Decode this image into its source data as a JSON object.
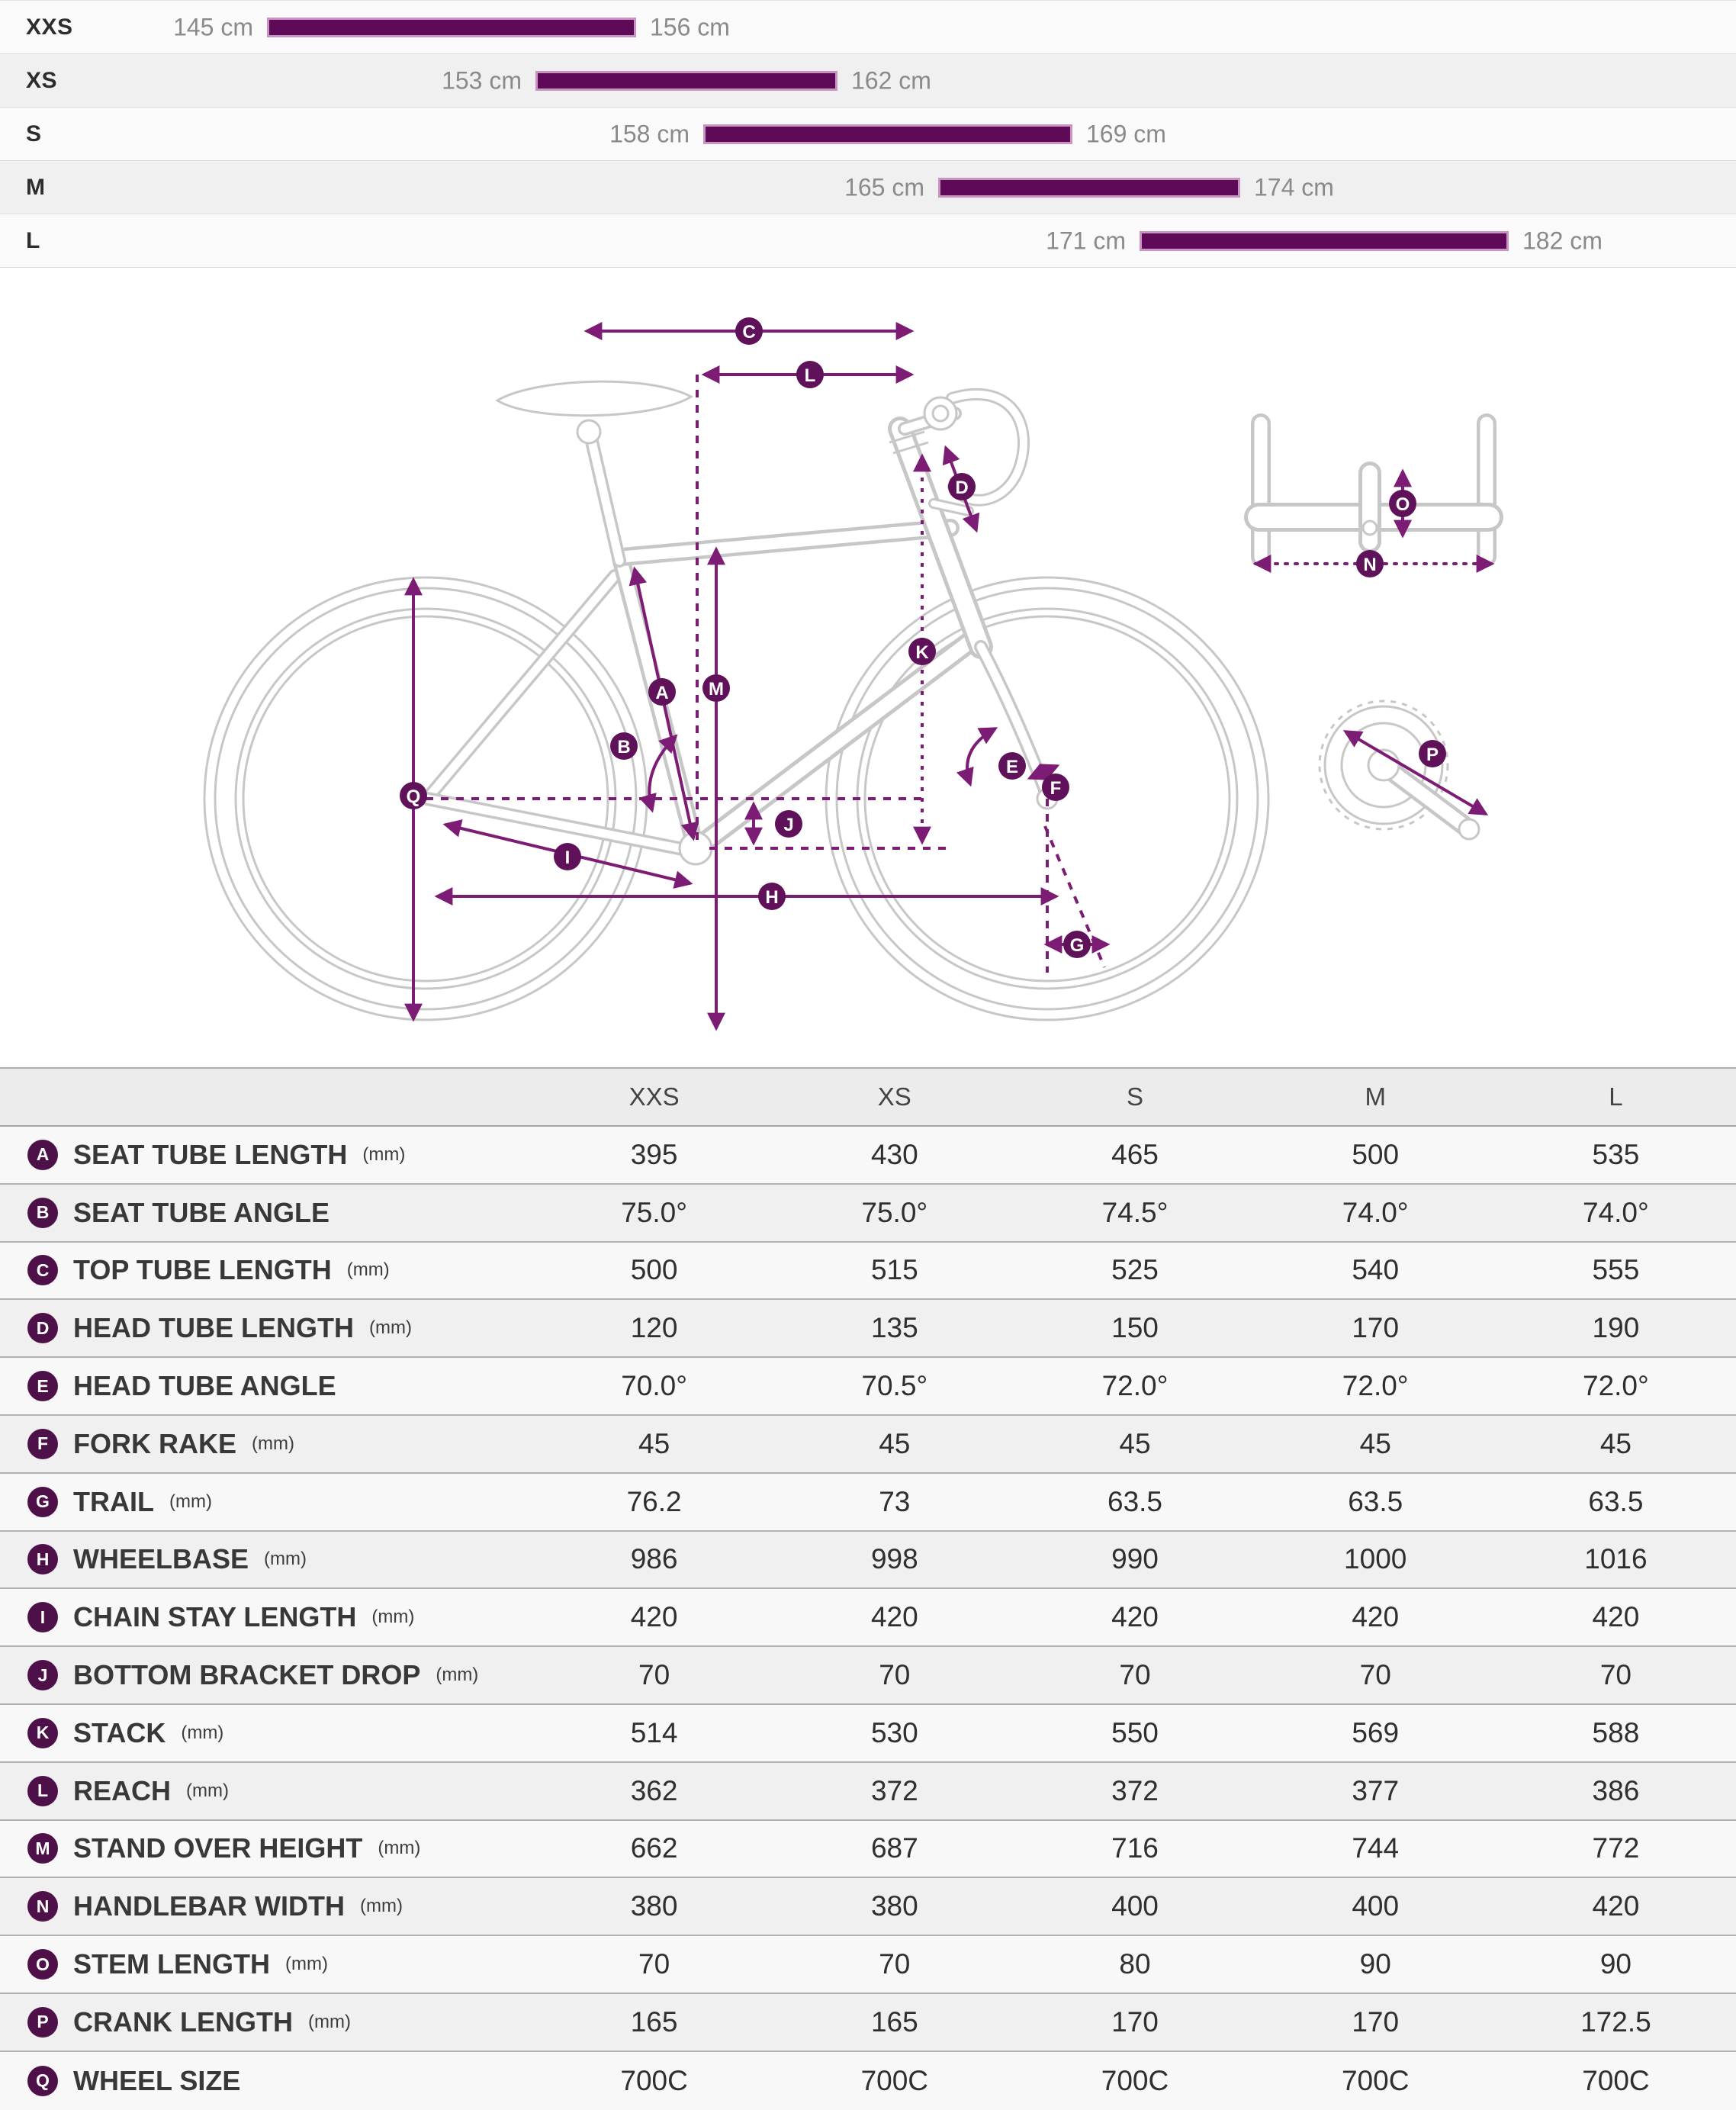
{
  "colors": {
    "bar_fill": "#5e0a58",
    "bar_edge": "#c795bf",
    "diagram_accent": "#7d1c74",
    "diagram_badge": "#5f1259",
    "table_badge": "#4e1049"
  },
  "rider_fit": {
    "unit": "cm",
    "rows": [
      {
        "size": "XXS",
        "min_cm": 145,
        "max_cm": 156,
        "min_label": "145 cm",
        "max_label": "156 cm"
      },
      {
        "size": "XS",
        "min_cm": 153,
        "max_cm": 162,
        "min_label": "153 cm",
        "max_label": "162 cm"
      },
      {
        "size": "S",
        "min_cm": 158,
        "max_cm": 169,
        "min_label": "158 cm",
        "max_label": "169 cm"
      },
      {
        "size": "M",
        "min_cm": 165,
        "max_cm": 174,
        "min_label": "165 cm",
        "max_label": "174 cm"
      },
      {
        "size": "L",
        "min_cm": 171,
        "max_cm": 182,
        "min_label": "171 cm",
        "max_label": "182 cm"
      }
    ]
  },
  "diagram": {
    "badges": {
      "A": "A",
      "B": "B",
      "C": "C",
      "D": "D",
      "E": "E",
      "F": "F",
      "G": "G",
      "H": "H",
      "I": "I",
      "J": "J",
      "K": "K",
      "L": "L",
      "M": "M",
      "N": "N",
      "O": "O",
      "P": "P",
      "Q": "Q"
    }
  },
  "table": {
    "columns": [
      "XXS",
      "XS",
      "S",
      "M",
      "L"
    ],
    "rows": [
      {
        "key": "A",
        "label": "SEAT TUBE LENGTH",
        "unit": "(mm)",
        "values": [
          "395",
          "430",
          "465",
          "500",
          "535"
        ]
      },
      {
        "key": "B",
        "label": "SEAT TUBE ANGLE",
        "unit": "",
        "values": [
          "75.0°",
          "75.0°",
          "74.5°",
          "74.0°",
          "74.0°"
        ]
      },
      {
        "key": "C",
        "label": "TOP TUBE LENGTH",
        "unit": "(mm)",
        "values": [
          "500",
          "515",
          "525",
          "540",
          "555"
        ]
      },
      {
        "key": "D",
        "label": "HEAD TUBE LENGTH",
        "unit": "(mm)",
        "values": [
          "120",
          "135",
          "150",
          "170",
          "190"
        ]
      },
      {
        "key": "E",
        "label": "HEAD TUBE ANGLE",
        "unit": "",
        "values": [
          "70.0°",
          "70.5°",
          "72.0°",
          "72.0°",
          "72.0°"
        ]
      },
      {
        "key": "F",
        "label": "FORK RAKE",
        "unit": "(mm)",
        "values": [
          "45",
          "45",
          "45",
          "45",
          "45"
        ]
      },
      {
        "key": "G",
        "label": "TRAIL",
        "unit": "(mm)",
        "values": [
          "76.2",
          "73",
          "63.5",
          "63.5",
          "63.5"
        ]
      },
      {
        "key": "H",
        "label": "WHEELBASE",
        "unit": "(mm)",
        "values": [
          "986",
          "998",
          "990",
          "1000",
          "1016"
        ]
      },
      {
        "key": "I",
        "label": "CHAIN STAY LENGTH",
        "unit": "(mm)",
        "values": [
          "420",
          "420",
          "420",
          "420",
          "420"
        ]
      },
      {
        "key": "J",
        "label": "BOTTOM BRACKET DROP",
        "unit": "(mm)",
        "values": [
          "70",
          "70",
          "70",
          "70",
          "70"
        ]
      },
      {
        "key": "K",
        "label": "STACK",
        "unit": "(mm)",
        "values": [
          "514",
          "530",
          "550",
          "569",
          "588"
        ]
      },
      {
        "key": "L",
        "label": "REACH",
        "unit": "(mm)",
        "values": [
          "362",
          "372",
          "372",
          "377",
          "386"
        ]
      },
      {
        "key": "M",
        "label": "STAND OVER HEIGHT",
        "unit": "(mm)",
        "values": [
          "662",
          "687",
          "716",
          "744",
          "772"
        ]
      },
      {
        "key": "N",
        "label": "HANDLEBAR WIDTH",
        "unit": "(mm)",
        "values": [
          "380",
          "380",
          "400",
          "400",
          "420"
        ]
      },
      {
        "key": "O",
        "label": "STEM LENGTH",
        "unit": "(mm)",
        "values": [
          "70",
          "70",
          "80",
          "90",
          "90"
        ]
      },
      {
        "key": "P",
        "label": "CRANK LENGTH",
        "unit": "(mm)",
        "values": [
          "165",
          "165",
          "170",
          "170",
          "172.5"
        ]
      },
      {
        "key": "Q",
        "label": "WHEEL SIZE",
        "unit": "",
        "values": [
          "700C",
          "700C",
          "700C",
          "700C",
          "700C"
        ]
      }
    ]
  }
}
